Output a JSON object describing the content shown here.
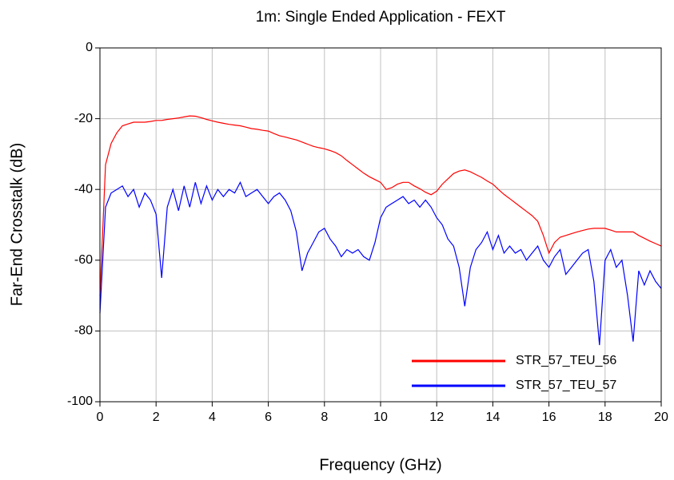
{
  "chart_data": {
    "type": "line",
    "title": "1m: Single Ended Application - FEXT",
    "x_label": "Frequency (GHz)",
    "y_label": "Far-End Crosstalk (dB)",
    "xlim": [
      0,
      20
    ],
    "xticks": [
      0,
      2,
      4,
      6,
      8,
      10,
      12,
      14,
      16,
      18,
      20
    ],
    "ylim": [
      -100,
      0
    ],
    "yticks": [
      0,
      -20,
      -40,
      -60,
      -80,
      -100
    ],
    "grid": true,
    "legend": "lower right",
    "x": [
      0,
      0.2,
      0.4,
      0.6,
      0.8,
      1,
      1.2,
      1.4,
      1.6,
      1.8,
      2,
      2.2,
      2.4,
      2.6,
      2.8,
      3,
      3.2,
      3.4,
      3.6,
      3.8,
      4,
      4.2,
      4.4,
      4.6,
      4.8,
      5,
      5.2,
      5.4,
      5.6,
      5.8,
      6,
      6.2,
      6.4,
      6.6,
      6.8,
      7,
      7.2,
      7.4,
      7.6,
      7.8,
      8,
      8.2,
      8.4,
      8.6,
      8.8,
      9,
      9.2,
      9.4,
      9.6,
      9.8,
      10,
      10.2,
      10.4,
      10.6,
      10.8,
      11,
      11.2,
      11.4,
      11.6,
      11.8,
      12,
      12.2,
      12.4,
      12.6,
      12.8,
      13,
      13.2,
      13.4,
      13.6,
      13.8,
      14,
      14.2,
      14.4,
      14.6,
      14.8,
      15,
      15.2,
      15.4,
      15.6,
      15.8,
      16,
      16.2,
      16.4,
      16.6,
      16.8,
      17,
      17.2,
      17.4,
      17.6,
      17.8,
      18,
      18.2,
      18.4,
      18.6,
      18.8,
      19,
      19.2,
      19.4,
      19.6,
      19.8,
      20
    ],
    "series": [
      {
        "name": "STR_57_TEU_56",
        "color": "#ff0000",
        "values": [
          -70,
          -33,
          -27,
          -24,
          -22,
          -21.5,
          -21,
          -21,
          -21,
          -20.8,
          -20.5,
          -20.5,
          -20.2,
          -20,
          -19.8,
          -19.5,
          -19.2,
          -19.3,
          -19.7,
          -20.2,
          -20.6,
          -21,
          -21.3,
          -21.6,
          -21.8,
          -22,
          -22.4,
          -22.8,
          -23,
          -23.3,
          -23.5,
          -24.2,
          -24.8,
          -25.2,
          -25.6,
          -26,
          -26.6,
          -27.2,
          -27.8,
          -28.2,
          -28.5,
          -29,
          -29.6,
          -30.5,
          -31.8,
          -33,
          -34.2,
          -35.4,
          -36.4,
          -37.2,
          -38,
          -40,
          -39.5,
          -38.5,
          -38,
          -38,
          -39,
          -39.8,
          -40.8,
          -41.5,
          -40.5,
          -38.5,
          -37,
          -35.5,
          -34.8,
          -34.5,
          -35,
          -35.8,
          -36.6,
          -37.6,
          -38.5,
          -40,
          -41.4,
          -42.6,
          -43.8,
          -45,
          -46.2,
          -47.4,
          -49,
          -53,
          -58,
          -55,
          -53.5,
          -53,
          -52.5,
          -52,
          -51.6,
          -51.2,
          -51,
          -51,
          -51,
          -51.5,
          -52,
          -52,
          -52,
          -52,
          -53,
          -53.8,
          -54.6,
          -55.3,
          -56
        ]
      },
      {
        "name": "STR_57_TEU_57",
        "color": "#0000ff",
        "values": [
          -75,
          -45,
          -41,
          -40,
          -39,
          -42,
          -40,
          -45,
          -41,
          -43,
          -47,
          -65,
          -45,
          -40,
          -46,
          -39,
          -45,
          -38,
          -44,
          -39,
          -43,
          -40,
          -42,
          -40,
          -41,
          -38,
          -42,
          -41,
          -40,
          -42,
          -44,
          -42,
          -41,
          -43,
          -46,
          -52,
          -63,
          -58,
          -55,
          -52,
          -51,
          -54,
          -56,
          -59,
          -57,
          -58,
          -57,
          -59,
          -60,
          -55,
          -48,
          -45,
          -44,
          -43,
          -42,
          -44,
          -43,
          -45,
          -43,
          -45,
          -48,
          -50,
          -54,
          -56,
          -62,
          -73,
          -62,
          -57,
          -55,
          -52,
          -57,
          -53,
          -58,
          -56,
          -58,
          -57,
          -60,
          -58,
          -56,
          -60,
          -62,
          -59,
          -57,
          -64,
          -62,
          -60,
          -58,
          -57,
          -66,
          -84,
          -60,
          -57,
          -62,
          -60,
          -70,
          -83,
          -63,
          -67,
          -63,
          -66,
          -68
        ]
      }
    ]
  }
}
